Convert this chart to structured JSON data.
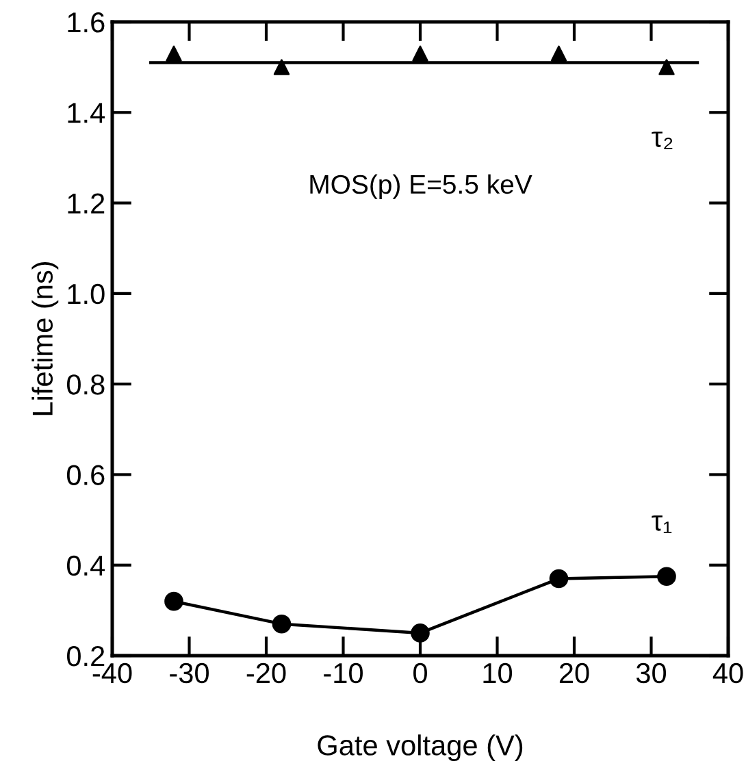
{
  "chart_data": {
    "type": "scatter",
    "xlabel": "Gate voltage (V)",
    "ylabel": "Lifetime (ns)",
    "annotations": [
      "MOS(p) E=5.5 keV"
    ],
    "series": [
      {
        "name": "τ₂",
        "type": "scatter",
        "marker": "triangle",
        "color": "#000000",
        "x": [
          -32,
          -18,
          0,
          18,
          32
        ],
        "values": [
          1.53,
          1.5,
          1.53,
          1.53,
          1.5
        ]
      },
      {
        "type": "line",
        "marker": "none",
        "color": "#000000",
        "x": [
          -35,
          36
        ],
        "values": [
          1.51,
          1.51
        ]
      },
      {
        "name": "τ₁",
        "type": "line",
        "marker": "circle",
        "color": "#000000",
        "x": [
          -32,
          -18,
          0,
          18,
          32
        ],
        "values": [
          0.32,
          0.27,
          0.25,
          0.37,
          0.375
        ]
      }
    ],
    "xlim": [
      -40,
      40
    ],
    "xticks": [
      -40,
      -30,
      -20,
      -10,
      0,
      10,
      20,
      30,
      40
    ],
    "ylim": [
      0.2,
      1.6
    ],
    "yticks": [
      {
        "value": 0.2,
        "label": "0.2"
      },
      {
        "value": 0.4,
        "label": "0.4"
      },
      {
        "value": 0.6,
        "label": "0.6"
      },
      {
        "value": 0.8,
        "label": "0.8"
      },
      {
        "value": 1.0,
        "label": "1.0"
      },
      {
        "value": 1.2,
        "label": "1.2"
      },
      {
        "value": 1.4,
        "label": "1.4"
      },
      {
        "value": 1.6,
        "label": "1.6"
      }
    ],
    "grid": false,
    "legend": false
  }
}
